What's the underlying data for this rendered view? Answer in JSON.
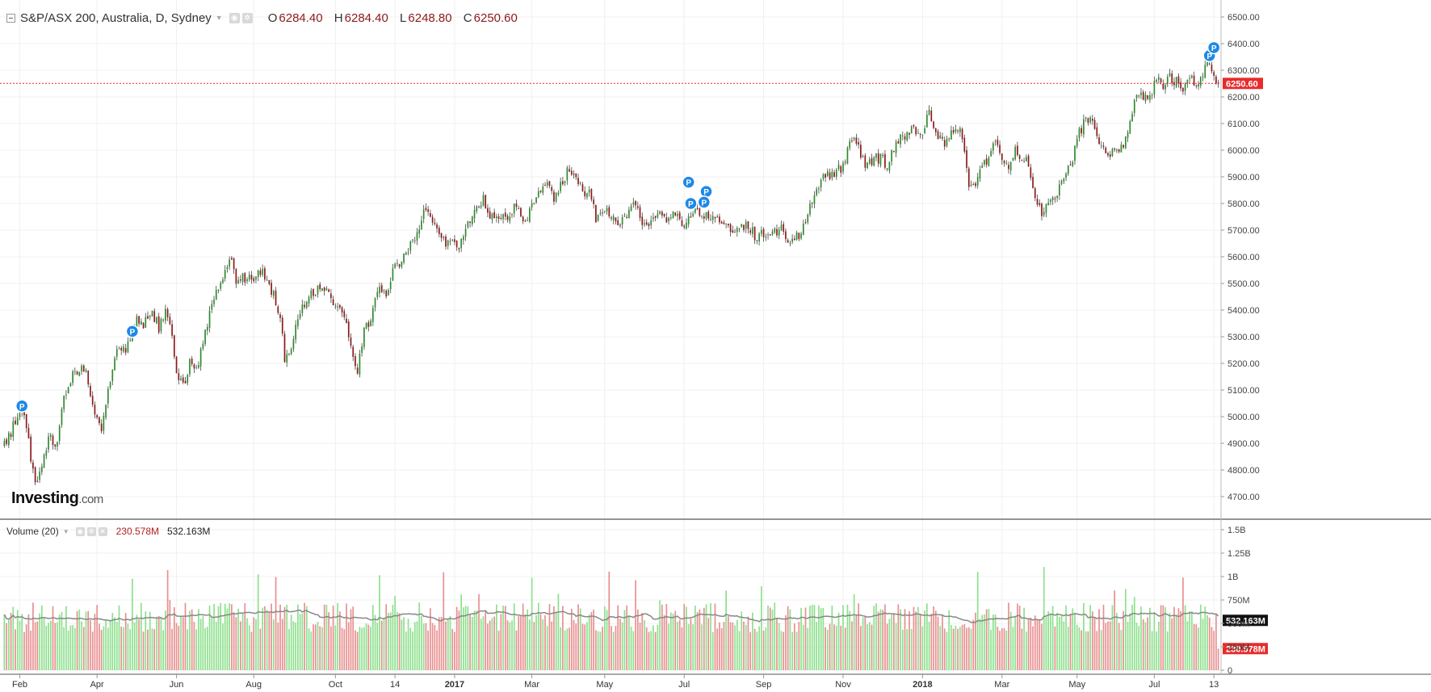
{
  "header": {
    "symbol": "S&P/ASX 200, Australia, D, Sydney",
    "open_label": "O",
    "open": "6284.40",
    "high_label": "H",
    "high": "6284.40",
    "low_label": "L",
    "low": "6248.80",
    "close_label": "C",
    "close": "6250.60"
  },
  "volume_panel": {
    "title": "Volume (20)",
    "last_volume": "230.578M",
    "ma_value": "532.163M"
  },
  "branding": {
    "logo_main": "Investing",
    "logo_suffix": ".com"
  },
  "chart_data": [
    {
      "type": "line",
      "title": "S&P/ASX 200, Australia, D, Sydney",
      "ylim": [
        4630,
        6540
      ],
      "y_ticks": [
        "6500.00",
        "6400.00",
        "6300.00",
        "6200.00",
        "6100.00",
        "6000.00",
        "5900.00",
        "5800.00",
        "5700.00",
        "5600.00",
        "5500.00",
        "5400.00",
        "5300.00",
        "5200.00",
        "5100.00",
        "5000.00",
        "4900.00",
        "4800.00",
        "4700.00"
      ],
      "x_ticks": [
        "Feb",
        "Apr",
        "Jun",
        "Aug",
        "Oct",
        "14",
        "2017",
        "Mar",
        "May",
        "Jul",
        "Sep",
        "Nov",
        "2018",
        "Mar",
        "May",
        "Jul",
        "13"
      ],
      "x_ticks_bold": [
        "2017",
        "2018"
      ],
      "price_path": [
        {
          "i": 0,
          "v": 4890
        },
        {
          "i": 5,
          "v": 4980
        },
        {
          "i": 8,
          "v": 5040
        },
        {
          "i": 10,
          "v": 4960
        },
        {
          "i": 14,
          "v": 4740
        },
        {
          "i": 17,
          "v": 4830
        },
        {
          "i": 21,
          "v": 4940
        },
        {
          "i": 23,
          "v": 4870
        },
        {
          "i": 27,
          "v": 5060
        },
        {
          "i": 32,
          "v": 5170
        },
        {
          "i": 37,
          "v": 5180
        },
        {
          "i": 41,
          "v": 5000
        },
        {
          "i": 44,
          "v": 4960
        },
        {
          "i": 48,
          "v": 5150
        },
        {
          "i": 52,
          "v": 5270
        },
        {
          "i": 55,
          "v": 5240
        },
        {
          "i": 60,
          "v": 5380
        },
        {
          "i": 63,
          "v": 5340
        },
        {
          "i": 67,
          "v": 5400
        },
        {
          "i": 70,
          "v": 5330
        },
        {
          "i": 73,
          "v": 5390
        },
        {
          "i": 76,
          "v": 5310
        },
        {
          "i": 78,
          "v": 5160
        },
        {
          "i": 81,
          "v": 5110
        },
        {
          "i": 84,
          "v": 5200
        },
        {
          "i": 87,
          "v": 5170
        },
        {
          "i": 90,
          "v": 5280
        },
        {
          "i": 94,
          "v": 5420
        },
        {
          "i": 98,
          "v": 5520
        },
        {
          "i": 103,
          "v": 5580
        },
        {
          "i": 105,
          "v": 5490
        },
        {
          "i": 108,
          "v": 5520
        },
        {
          "i": 112,
          "v": 5520
        },
        {
          "i": 116,
          "v": 5550
        },
        {
          "i": 119,
          "v": 5500
        },
        {
          "i": 122,
          "v": 5450
        },
        {
          "i": 125,
          "v": 5370
        },
        {
          "i": 127,
          "v": 5220
        },
        {
          "i": 130,
          "v": 5270
        },
        {
          "i": 134,
          "v": 5380
        },
        {
          "i": 138,
          "v": 5460
        },
        {
          "i": 142,
          "v": 5480
        },
        {
          "i": 146,
          "v": 5460
        },
        {
          "i": 150,
          "v": 5430
        },
        {
          "i": 154,
          "v": 5390
        },
        {
          "i": 157,
          "v": 5270
        },
        {
          "i": 160,
          "v": 5170
        },
        {
          "i": 163,
          "v": 5320
        },
        {
          "i": 166,
          "v": 5370
        },
        {
          "i": 170,
          "v": 5480
        },
        {
          "i": 173,
          "v": 5460
        },
        {
          "i": 176,
          "v": 5560
        },
        {
          "i": 180,
          "v": 5580
        },
        {
          "i": 184,
          "v": 5640
        },
        {
          "i": 187,
          "v": 5700
        },
        {
          "i": 191,
          "v": 5790
        },
        {
          "i": 194,
          "v": 5740
        },
        {
          "i": 197,
          "v": 5680
        },
        {
          "i": 200,
          "v": 5640
        },
        {
          "i": 203,
          "v": 5680
        },
        {
          "i": 206,
          "v": 5640
        },
        {
          "i": 209,
          "v": 5700
        },
        {
          "i": 213,
          "v": 5780
        },
        {
          "i": 217,
          "v": 5810
        },
        {
          "i": 220,
          "v": 5750
        },
        {
          "i": 223,
          "v": 5740
        },
        {
          "i": 226,
          "v": 5740
        },
        {
          "i": 230,
          "v": 5780
        },
        {
          "i": 233,
          "v": 5780
        },
        {
          "i": 236,
          "v": 5720
        },
        {
          "i": 239,
          "v": 5790
        },
        {
          "i": 243,
          "v": 5860
        },
        {
          "i": 246,
          "v": 5880
        },
        {
          "i": 249,
          "v": 5800
        },
        {
          "i": 252,
          "v": 5880
        },
        {
          "i": 256,
          "v": 5930
        },
        {
          "i": 259,
          "v": 5900
        },
        {
          "i": 262,
          "v": 5850
        },
        {
          "i": 265,
          "v": 5840
        },
        {
          "i": 268,
          "v": 5750
        },
        {
          "i": 271,
          "v": 5770
        },
        {
          "i": 274,
          "v": 5760
        },
        {
          "i": 278,
          "v": 5720
        },
        {
          "i": 282,
          "v": 5760
        },
        {
          "i": 286,
          "v": 5810
        },
        {
          "i": 289,
          "v": 5720
        },
        {
          "i": 292,
          "v": 5700
        },
        {
          "i": 296,
          "v": 5780
        },
        {
          "i": 300,
          "v": 5740
        },
        {
          "i": 304,
          "v": 5760
        },
        {
          "i": 308,
          "v": 5700
        },
        {
          "i": 312,
          "v": 5760
        },
        {
          "i": 316,
          "v": 5760
        },
        {
          "i": 320,
          "v": 5750
        },
        {
          "i": 324,
          "v": 5730
        },
        {
          "i": 328,
          "v": 5720
        },
        {
          "i": 332,
          "v": 5700
        },
        {
          "i": 336,
          "v": 5720
        },
        {
          "i": 340,
          "v": 5680
        },
        {
          "i": 344,
          "v": 5680
        },
        {
          "i": 348,
          "v": 5690
        },
        {
          "i": 352,
          "v": 5700
        },
        {
          "i": 356,
          "v": 5660
        },
        {
          "i": 360,
          "v": 5680
        },
        {
          "i": 364,
          "v": 5760
        },
        {
          "i": 368,
          "v": 5860
        },
        {
          "i": 372,
          "v": 5900
        },
        {
          "i": 376,
          "v": 5910
        },
        {
          "i": 380,
          "v": 5940
        },
        {
          "i": 384,
          "v": 6040
        },
        {
          "i": 387,
          "v": 6000
        },
        {
          "i": 390,
          "v": 5940
        },
        {
          "i": 393,
          "v": 5960
        },
        {
          "i": 396,
          "v": 5970
        },
        {
          "i": 400,
          "v": 5950
        },
        {
          "i": 404,
          "v": 6020
        },
        {
          "i": 408,
          "v": 6060
        },
        {
          "i": 412,
          "v": 6080
        },
        {
          "i": 416,
          "v": 6080
        },
        {
          "i": 419,
          "v": 6130
        },
        {
          "i": 422,
          "v": 6070
        },
        {
          "i": 426,
          "v": 6030
        },
        {
          "i": 430,
          "v": 6080
        },
        {
          "i": 433,
          "v": 6100
        },
        {
          "i": 435,
          "v": 6000
        },
        {
          "i": 437,
          "v": 5860
        },
        {
          "i": 440,
          "v": 5850
        },
        {
          "i": 443,
          "v": 5940
        },
        {
          "i": 446,
          "v": 5980
        },
        {
          "i": 449,
          "v": 6050
        },
        {
          "i": 452,
          "v": 5960
        },
        {
          "i": 455,
          "v": 5930
        },
        {
          "i": 458,
          "v": 6000
        },
        {
          "i": 461,
          "v": 5970
        },
        {
          "i": 464,
          "v": 5950
        },
        {
          "i": 467,
          "v": 5820
        },
        {
          "i": 470,
          "v": 5760
        },
        {
          "i": 473,
          "v": 5790
        },
        {
          "i": 476,
          "v": 5830
        },
        {
          "i": 479,
          "v": 5880
        },
        {
          "i": 483,
          "v": 5940
        },
        {
          "i": 486,
          "v": 6040
        },
        {
          "i": 489,
          "v": 6100
        },
        {
          "i": 492,
          "v": 6120
        },
        {
          "i": 495,
          "v": 6060
        },
        {
          "i": 498,
          "v": 6010
        },
        {
          "i": 501,
          "v": 5990
        },
        {
          "i": 504,
          "v": 6010
        },
        {
          "i": 507,
          "v": 6030
        },
        {
          "i": 510,
          "v": 6110
        },
        {
          "i": 513,
          "v": 6220
        },
        {
          "i": 516,
          "v": 6200
        },
        {
          "i": 519,
          "v": 6210
        },
        {
          "i": 522,
          "v": 6260
        },
        {
          "i": 525,
          "v": 6250
        },
        {
          "i": 528,
          "v": 6270
        },
        {
          "i": 531,
          "v": 6260
        },
        {
          "i": 534,
          "v": 6240
        },
        {
          "i": 537,
          "v": 6270
        },
        {
          "i": 540,
          "v": 6260
        },
        {
          "i": 543,
          "v": 6280
        },
        {
          "i": 546,
          "v": 6340
        },
        {
          "i": 548,
          "v": 6284
        },
        {
          "i": 550,
          "v": 6250
        }
      ],
      "bar_count": 551,
      "last_price": 6250.6,
      "last_price_label": "6250.60",
      "markers": [
        {
          "i": 8,
          "v": 5040,
          "label": "P"
        },
        {
          "i": 58,
          "v": 5320,
          "label": "P"
        },
        {
          "i": 310,
          "v": 5880,
          "label": "P"
        },
        {
          "i": 311,
          "v": 5800,
          "label": "P"
        },
        {
          "i": 318,
          "v": 5845,
          "label": "P"
        },
        {
          "i": 317,
          "v": 5805,
          "label": "P"
        },
        {
          "i": 546,
          "v": 6355,
          "label": "P"
        },
        {
          "i": 548,
          "v": 6385,
          "label": "P"
        }
      ],
      "colors": {
        "up": "#2e8b2e",
        "down": "#8b1a1a",
        "wick": "#444444",
        "last_line": "#e62c2c",
        "marker": "#1e88e5",
        "grid": "#f0f0f0"
      }
    },
    {
      "type": "bar",
      "title": "Volume (20)",
      "ylim": [
        0,
        1500000000
      ],
      "y_ticks": [
        "1.5B",
        "1.25B",
        "1B",
        "750M",
        "500M",
        "250M",
        "0"
      ],
      "typical_volume": 580000000,
      "ma_volume": 532163000,
      "last_volume": 230578000,
      "last_volume_label": "230.578M",
      "ma_label": "532.163M",
      "colors": {
        "up": "#8ee08e",
        "down": "#e89090",
        "ma": "#888888"
      }
    }
  ]
}
